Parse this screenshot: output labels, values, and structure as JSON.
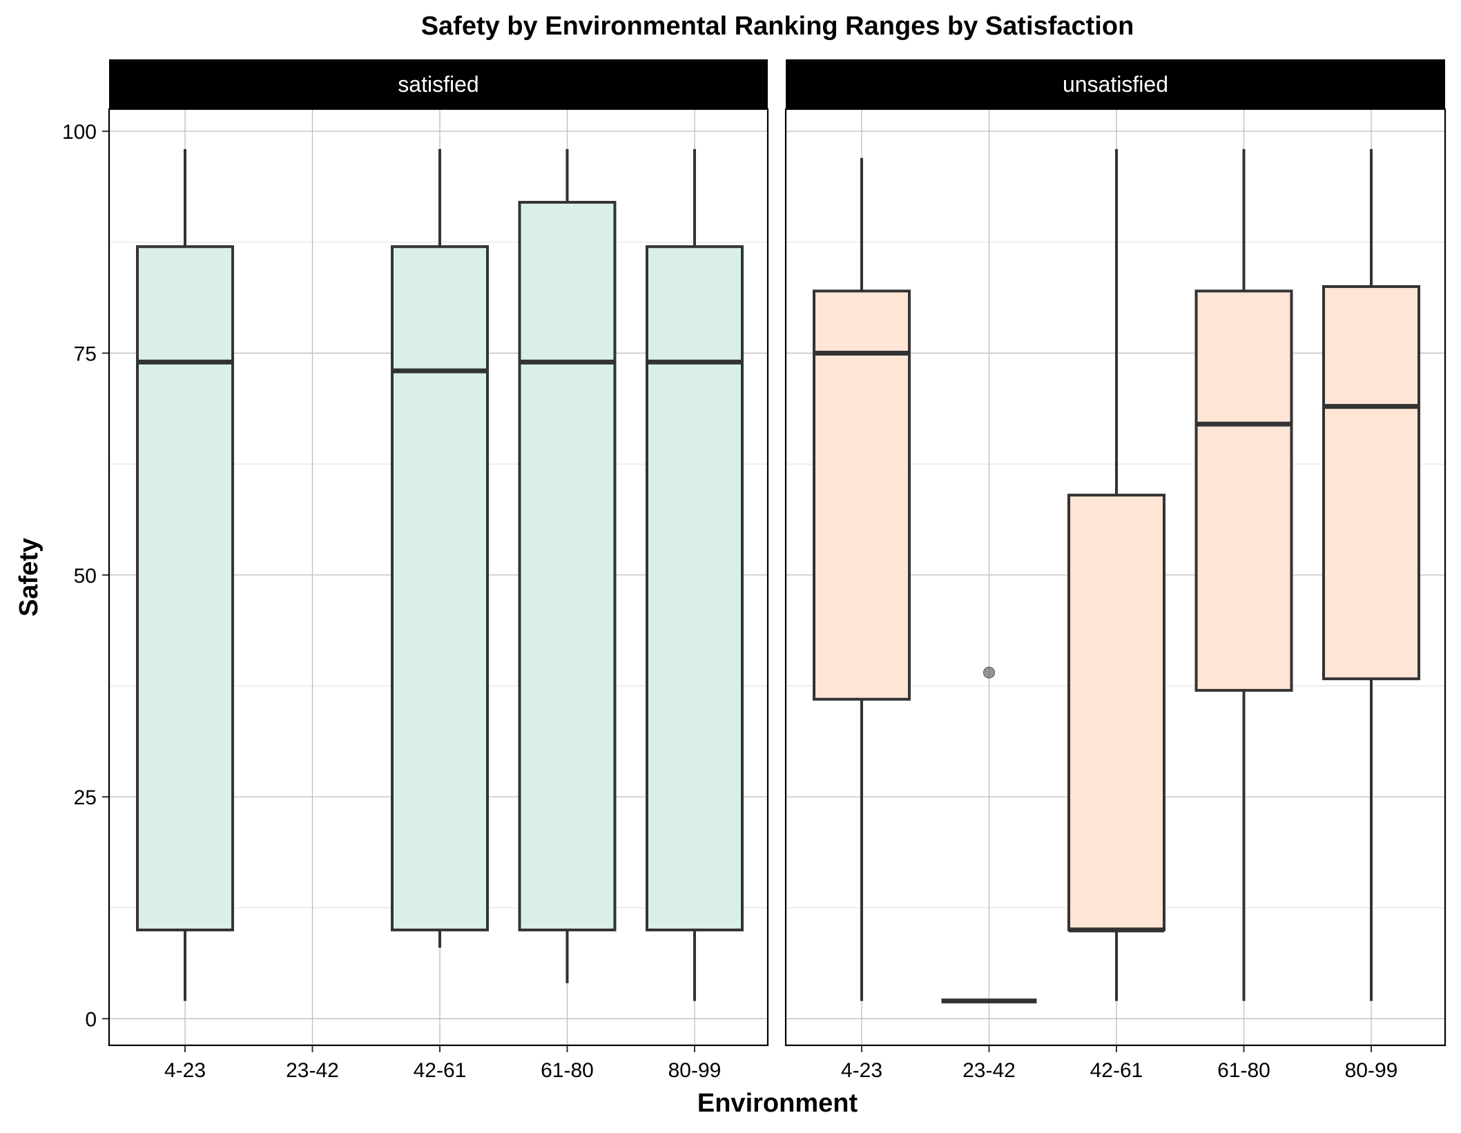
{
  "chart_data": {
    "type": "boxplot",
    "title": "Safety by Environmental Ranking Ranges by Satisfaction",
    "xlabel": "Environment",
    "ylabel": "Safety",
    "categories": [
      "4-23",
      "23-42",
      "42-61",
      "61-80",
      "80-99"
    ],
    "yticks": [
      0,
      25,
      50,
      75,
      100
    ],
    "ylim": [
      -3,
      102.5
    ],
    "grid": true,
    "colors": {
      "satisfied": "#daf0e6",
      "unsatisfied": "#fee5d5",
      "strip": "#000000",
      "outline": "#333333"
    },
    "panels": [
      {
        "label": "satisfied",
        "boxes": [
          {
            "category": "4-23",
            "min": 2,
            "q1": 10,
            "median": 74,
            "q3": 87,
            "max": 98
          },
          {
            "category": "42-61",
            "min": 8,
            "q1": 10,
            "median": 73,
            "q3": 87,
            "max": 98
          },
          {
            "category": "61-80",
            "min": 4,
            "q1": 10,
            "median": 74,
            "q3": 92,
            "max": 98
          },
          {
            "category": "80-99",
            "min": 2,
            "q1": 10,
            "median": 74,
            "q3": 87,
            "max": 98
          }
        ]
      },
      {
        "label": "unsatisfied",
        "boxes": [
          {
            "category": "4-23",
            "min": 2,
            "q1": 36,
            "median": 75,
            "q3": 82,
            "max": 97
          },
          {
            "category": "23-42",
            "min": 2,
            "q1": 2,
            "median": 2,
            "q3": 2,
            "max": 2,
            "outliers": [
              39
            ]
          },
          {
            "category": "42-61",
            "min": 2,
            "q1": 10,
            "median": 10,
            "q3": 59,
            "max": 98
          },
          {
            "category": "61-80",
            "min": 2,
            "q1": 37,
            "median": 67,
            "q3": 82,
            "max": 98
          },
          {
            "category": "80-99",
            "min": 2,
            "q1": 38.3,
            "median": 69,
            "q3": 82.5,
            "max": 98
          }
        ]
      }
    ]
  }
}
